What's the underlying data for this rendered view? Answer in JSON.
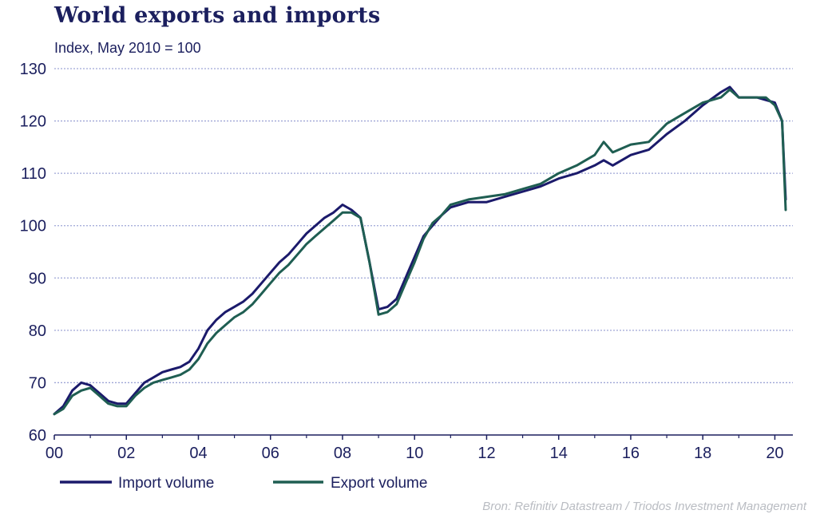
{
  "title": "World exports and imports",
  "subtitle": "Index, May 2010 = 100",
  "source": "Bron: Refinitiv Datastream / Triodos Investment Management",
  "colors": {
    "import": "#1b1a6b",
    "export": "#1f5e52",
    "grid": "#9fa6d6",
    "axis": "#1b1f5e"
  },
  "chart_data": {
    "type": "line",
    "title": "World exports and imports",
    "subtitle": "Index, May 2010 = 100",
    "xlabel": "",
    "ylabel": "",
    "xlim": [
      2000,
      2020.5
    ],
    "ylim": [
      60,
      130
    ],
    "xticks": [
      "00",
      "02",
      "04",
      "06",
      "08",
      "10",
      "12",
      "14",
      "16",
      "18",
      "20"
    ],
    "yticks": [
      "60",
      "70",
      "80",
      "90",
      "100",
      "110",
      "120",
      "130"
    ],
    "grid": "horizontal dotted",
    "legend": "bottom-left",
    "series": [
      {
        "name": "Import volume",
        "x": [
          2000.0,
          2000.25,
          2000.5,
          2000.75,
          2001.0,
          2001.25,
          2001.5,
          2001.75,
          2002.0,
          2002.25,
          2002.5,
          2002.75,
          2003.0,
          2003.25,
          2003.5,
          2003.75,
          2004.0,
          2004.25,
          2004.5,
          2004.75,
          2005.0,
          2005.25,
          2005.5,
          2005.75,
          2006.0,
          2006.25,
          2006.5,
          2006.75,
          2007.0,
          2007.25,
          2007.5,
          2007.75,
          2008.0,
          2008.25,
          2008.5,
          2008.75,
          2009.0,
          2009.25,
          2009.5,
          2009.75,
          2010.0,
          2010.25,
          2010.5,
          2010.75,
          2011.0,
          2011.5,
          2012.0,
          2012.5,
          2013.0,
          2013.5,
          2014.0,
          2014.5,
          2015.0,
          2015.25,
          2015.5,
          2016.0,
          2016.5,
          2017.0,
          2017.5,
          2018.0,
          2018.5,
          2018.75,
          2019.0,
          2019.5,
          2019.75,
          2020.0,
          2020.2,
          2020.3
        ],
        "values": [
          64.0,
          65.5,
          68.5,
          70.0,
          69.5,
          68.0,
          66.5,
          66.0,
          66.0,
          68.0,
          70.0,
          71.0,
          72.0,
          72.5,
          73.0,
          74.0,
          76.5,
          80.0,
          82.0,
          83.5,
          84.5,
          85.5,
          87.0,
          89.0,
          91.0,
          93.0,
          94.5,
          96.5,
          98.5,
          100.0,
          101.5,
          102.5,
          104.0,
          103.0,
          101.5,
          93.0,
          84.0,
          84.5,
          86.0,
          90.0,
          94.0,
          98.0,
          100.0,
          102.0,
          103.5,
          104.5,
          104.5,
          105.5,
          106.5,
          107.5,
          109.0,
          110.0,
          111.5,
          112.5,
          111.5,
          113.5,
          114.5,
          117.5,
          120.0,
          123.0,
          125.5,
          126.5,
          124.5,
          124.5,
          124.0,
          123.5,
          120.0,
          105.0
        ]
      },
      {
        "name": "Export volume",
        "x": [
          2000.0,
          2000.25,
          2000.5,
          2000.75,
          2001.0,
          2001.25,
          2001.5,
          2001.75,
          2002.0,
          2002.25,
          2002.5,
          2002.75,
          2003.0,
          2003.25,
          2003.5,
          2003.75,
          2004.0,
          2004.25,
          2004.5,
          2004.75,
          2005.0,
          2005.25,
          2005.5,
          2005.75,
          2006.0,
          2006.25,
          2006.5,
          2006.75,
          2007.0,
          2007.25,
          2007.5,
          2007.75,
          2008.0,
          2008.25,
          2008.5,
          2008.75,
          2009.0,
          2009.25,
          2009.5,
          2009.75,
          2010.0,
          2010.25,
          2010.5,
          2010.75,
          2011.0,
          2011.5,
          2012.0,
          2012.5,
          2013.0,
          2013.5,
          2014.0,
          2014.5,
          2015.0,
          2015.25,
          2015.5,
          2016.0,
          2016.5,
          2017.0,
          2017.5,
          2018.0,
          2018.5,
          2018.75,
          2019.0,
          2019.5,
          2019.75,
          2020.0,
          2020.2,
          2020.3
        ],
        "values": [
          64.0,
          65.0,
          67.5,
          68.5,
          69.0,
          67.5,
          66.0,
          65.5,
          65.5,
          67.5,
          69.0,
          70.0,
          70.5,
          71.0,
          71.5,
          72.5,
          74.5,
          77.5,
          79.5,
          81.0,
          82.5,
          83.5,
          85.0,
          87.0,
          89.0,
          91.0,
          92.5,
          94.5,
          96.5,
          98.0,
          99.5,
          101.0,
          102.5,
          102.5,
          101.5,
          93.0,
          83.0,
          83.5,
          85.0,
          89.0,
          93.0,
          97.5,
          100.5,
          102.0,
          104.0,
          105.0,
          105.5,
          106.0,
          107.0,
          108.0,
          110.0,
          111.5,
          113.5,
          116.0,
          114.0,
          115.5,
          116.0,
          119.5,
          121.5,
          123.5,
          124.5,
          126.0,
          124.5,
          124.5,
          124.5,
          123.0,
          120.0,
          103.0
        ]
      }
    ]
  }
}
